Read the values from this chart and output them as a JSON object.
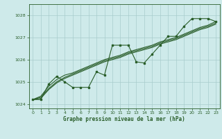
{
  "title": "Graphe pression niveau de la mer (hPa)",
  "bg_color": "#ceeaea",
  "grid_color": "#a8cccc",
  "line_color": "#2a5e2a",
  "xlim": [
    -0.5,
    23.5
  ],
  "ylim": [
    1023.8,
    1028.5
  ],
  "yticks": [
    1024,
    1025,
    1026,
    1027,
    1028
  ],
  "xticks": [
    0,
    1,
    2,
    3,
    4,
    5,
    6,
    7,
    8,
    9,
    10,
    11,
    12,
    13,
    14,
    15,
    16,
    17,
    18,
    19,
    20,
    21,
    22,
    23
  ],
  "zigzag": [
    1024.2,
    1024.2,
    1024.9,
    1025.25,
    1025.0,
    1024.75,
    1024.75,
    1024.75,
    1025.45,
    1025.3,
    1026.65,
    1026.65,
    1026.65,
    1025.9,
    1025.85,
    1026.25,
    1026.65,
    1027.05,
    1027.05,
    1027.5,
    1027.85,
    1027.85,
    1027.85,
    1027.72
  ],
  "smooth1": [
    1024.2,
    1024.35,
    1024.8,
    1025.1,
    1025.3,
    1025.4,
    1025.55,
    1025.7,
    1025.85,
    1026.0,
    1026.1,
    1026.2,
    1026.35,
    1026.45,
    1026.55,
    1026.65,
    1026.8,
    1026.9,
    1027.0,
    1027.15,
    1027.3,
    1027.45,
    1027.55,
    1027.72
  ],
  "smooth2": [
    1024.2,
    1024.3,
    1024.7,
    1025.0,
    1025.2,
    1025.35,
    1025.5,
    1025.65,
    1025.8,
    1025.95,
    1026.05,
    1026.15,
    1026.3,
    1026.4,
    1026.5,
    1026.6,
    1026.75,
    1026.85,
    1026.95,
    1027.1,
    1027.25,
    1027.4,
    1027.5,
    1027.65
  ],
  "smooth3": [
    1024.2,
    1024.25,
    1024.65,
    1024.95,
    1025.15,
    1025.3,
    1025.45,
    1025.6,
    1025.75,
    1025.9,
    1026.0,
    1026.1,
    1026.25,
    1026.35,
    1026.45,
    1026.55,
    1026.7,
    1026.8,
    1026.9,
    1027.05,
    1027.2,
    1027.35,
    1027.45,
    1027.6
  ]
}
